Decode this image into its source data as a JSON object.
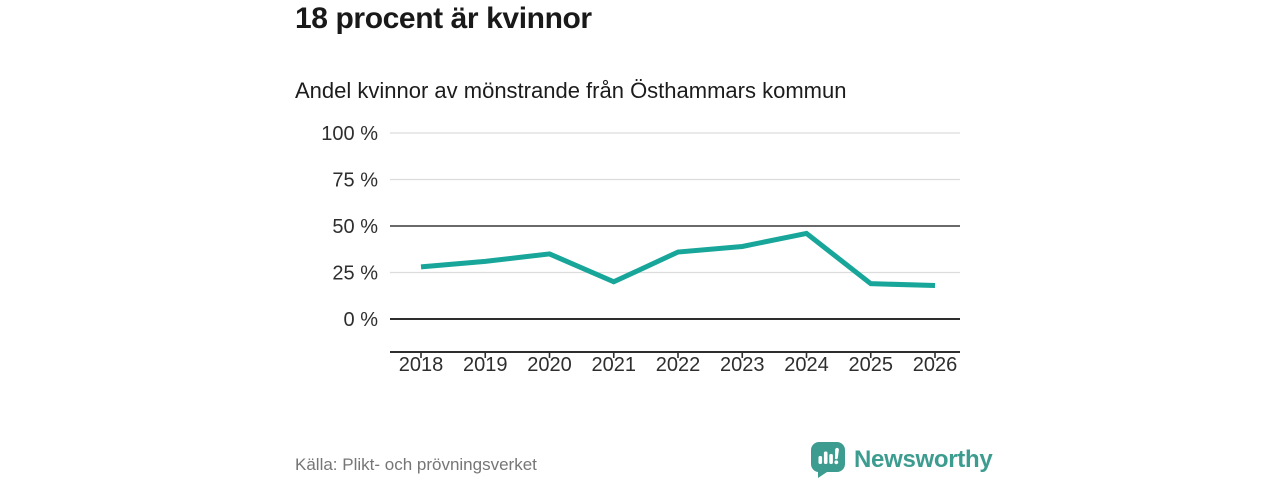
{
  "header": {
    "title": "18 procent är kvinnor",
    "subtitle": "Andel kvinnor av mönstrande från Östhammars kommun"
  },
  "chart_data": {
    "type": "line",
    "title": "18 procent är kvinnor",
    "subtitle": "Andel kvinnor av mönstrande från Östhammars kommun",
    "categories": [
      "2018",
      "2019",
      "2020",
      "2021",
      "2022",
      "2023",
      "2024",
      "2025",
      "2026"
    ],
    "series": [
      {
        "name": "Andel kvinnor av mönstrande",
        "values": [
          28,
          31,
          35,
          20,
          36,
          39,
          46,
          19,
          18
        ]
      }
    ],
    "unit": "%",
    "ylim": [
      0,
      100
    ],
    "yticks": [
      0,
      25,
      50,
      75,
      100
    ],
    "ytick_labels": [
      "0 %",
      "25 %",
      "50 %",
      "75 %",
      "100 %"
    ],
    "emphasized_gridlines": [
      50
    ],
    "grid": true,
    "legend_position": "none",
    "colors": {
      "line": "#17a699",
      "grid_light": "#dcdcdc",
      "grid_emphasis": "#555555",
      "axis": "#2e2e2e",
      "tick_text": "#2e2e2e"
    }
  },
  "footer": {
    "source": "Källa: Plikt- och prövningsverket",
    "brand": "Newsworthy",
    "brand_color": "#3d9c90"
  }
}
